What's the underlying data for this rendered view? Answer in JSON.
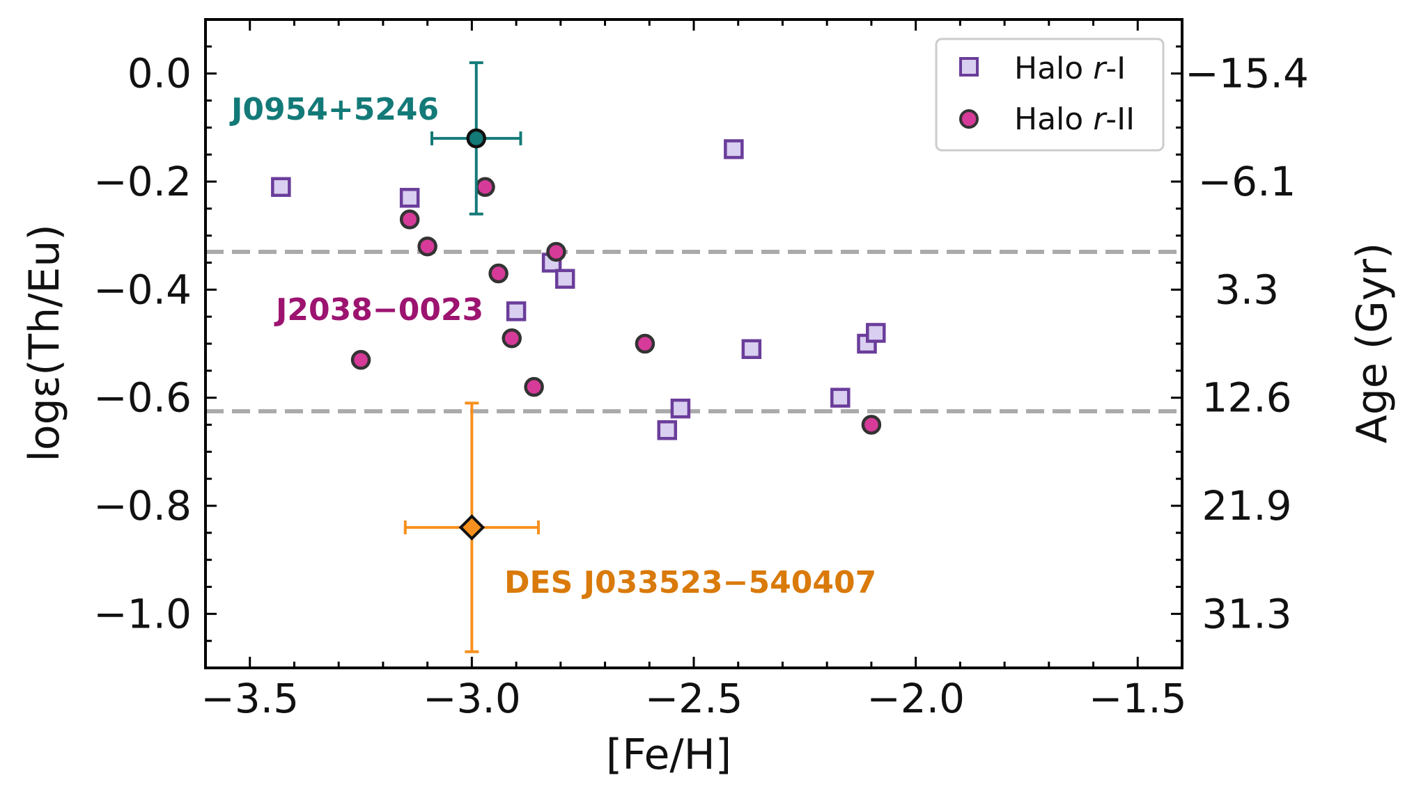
{
  "chart_data": {
    "type": "scatter",
    "xlabel": "[Fe/H]",
    "ylabel": "logε(Th/Eu)",
    "y2label": "Age (Gyr)",
    "xlim": [
      -3.6,
      -1.4
    ],
    "ylim": [
      -1.1,
      0.1
    ],
    "x_ticks": [
      "−3.5",
      "−3.0",
      "−2.5",
      "−2.0",
      "−1.5"
    ],
    "x_tick_values": [
      -3.5,
      -3.0,
      -2.5,
      -2.0,
      -1.5
    ],
    "y_ticks": [
      "0.0",
      "−0.2",
      "−0.4",
      "−0.6",
      "−0.8",
      "−1.0"
    ],
    "y_tick_values": [
      0.0,
      -0.2,
      -0.4,
      -0.6,
      -0.8,
      -1.0
    ],
    "y2_ticks": [
      "−15.4",
      "−6.1",
      "3.3",
      "12.6",
      "21.9",
      "31.3"
    ],
    "grid": false,
    "legend_position": "top-right",
    "colors": {
      "halo_r1_edge": "#6a3d9a",
      "halo_r1_fill": "#d9cff0",
      "halo_r2_fill": "#d63b99",
      "halo_r2_edge": "#333333",
      "j0954": "#137a78",
      "j2038": "#9c1470",
      "des": "#f7901e",
      "des_text": "#d97a0a",
      "reference_line": "#aaaaaa"
    },
    "reference_lines": [
      -0.33,
      -0.625
    ],
    "series": [
      {
        "name": "Halo r-I",
        "marker": "square",
        "points": [
          {
            "x": -3.43,
            "y": -0.21
          },
          {
            "x": -3.14,
            "y": -0.23
          },
          {
            "x": -2.82,
            "y": -0.35
          },
          {
            "x": -2.79,
            "y": -0.38
          },
          {
            "x": -2.9,
            "y": -0.44
          },
          {
            "x": -2.41,
            "y": -0.14
          },
          {
            "x": -2.37,
            "y": -0.51
          },
          {
            "x": -2.56,
            "y": -0.66
          },
          {
            "x": -2.53,
            "y": -0.62
          },
          {
            "x": -2.17,
            "y": -0.6
          },
          {
            "x": -2.11,
            "y": -0.5
          },
          {
            "x": -2.09,
            "y": -0.48
          }
        ]
      },
      {
        "name": "Halo r-II",
        "marker": "circle",
        "points": [
          {
            "x": -3.14,
            "y": -0.27
          },
          {
            "x": -3.1,
            "y": -0.32
          },
          {
            "x": -2.97,
            "y": -0.21
          },
          {
            "x": -2.94,
            "y": -0.37
          },
          {
            "x": -2.81,
            "y": -0.33
          },
          {
            "x": -2.91,
            "y": -0.49
          },
          {
            "x": -3.25,
            "y": -0.53
          },
          {
            "x": -2.86,
            "y": -0.58
          },
          {
            "x": -2.61,
            "y": -0.5
          },
          {
            "x": -2.1,
            "y": -0.65
          }
        ]
      }
    ],
    "highlights": [
      {
        "label": "J0954+5246",
        "x": -2.99,
        "y": -0.12,
        "xerr": 0.1,
        "yerr": [
          0.14,
          0.14
        ],
        "marker": "circle"
      },
      {
        "label": "DES J033523−540407",
        "x": -3.0,
        "y": -0.84,
        "xerr": 0.15,
        "yerr": [
          0.23,
          0.23
        ],
        "marker": "diamond"
      }
    ],
    "annotations": [
      "J2038−0023"
    ]
  },
  "legend": {
    "r1_prefix": "Halo ",
    "r1_italic": "r",
    "r1_suffix": "-I",
    "r2_prefix": "Halo ",
    "r2_italic": "r",
    "r2_suffix": "-II"
  }
}
